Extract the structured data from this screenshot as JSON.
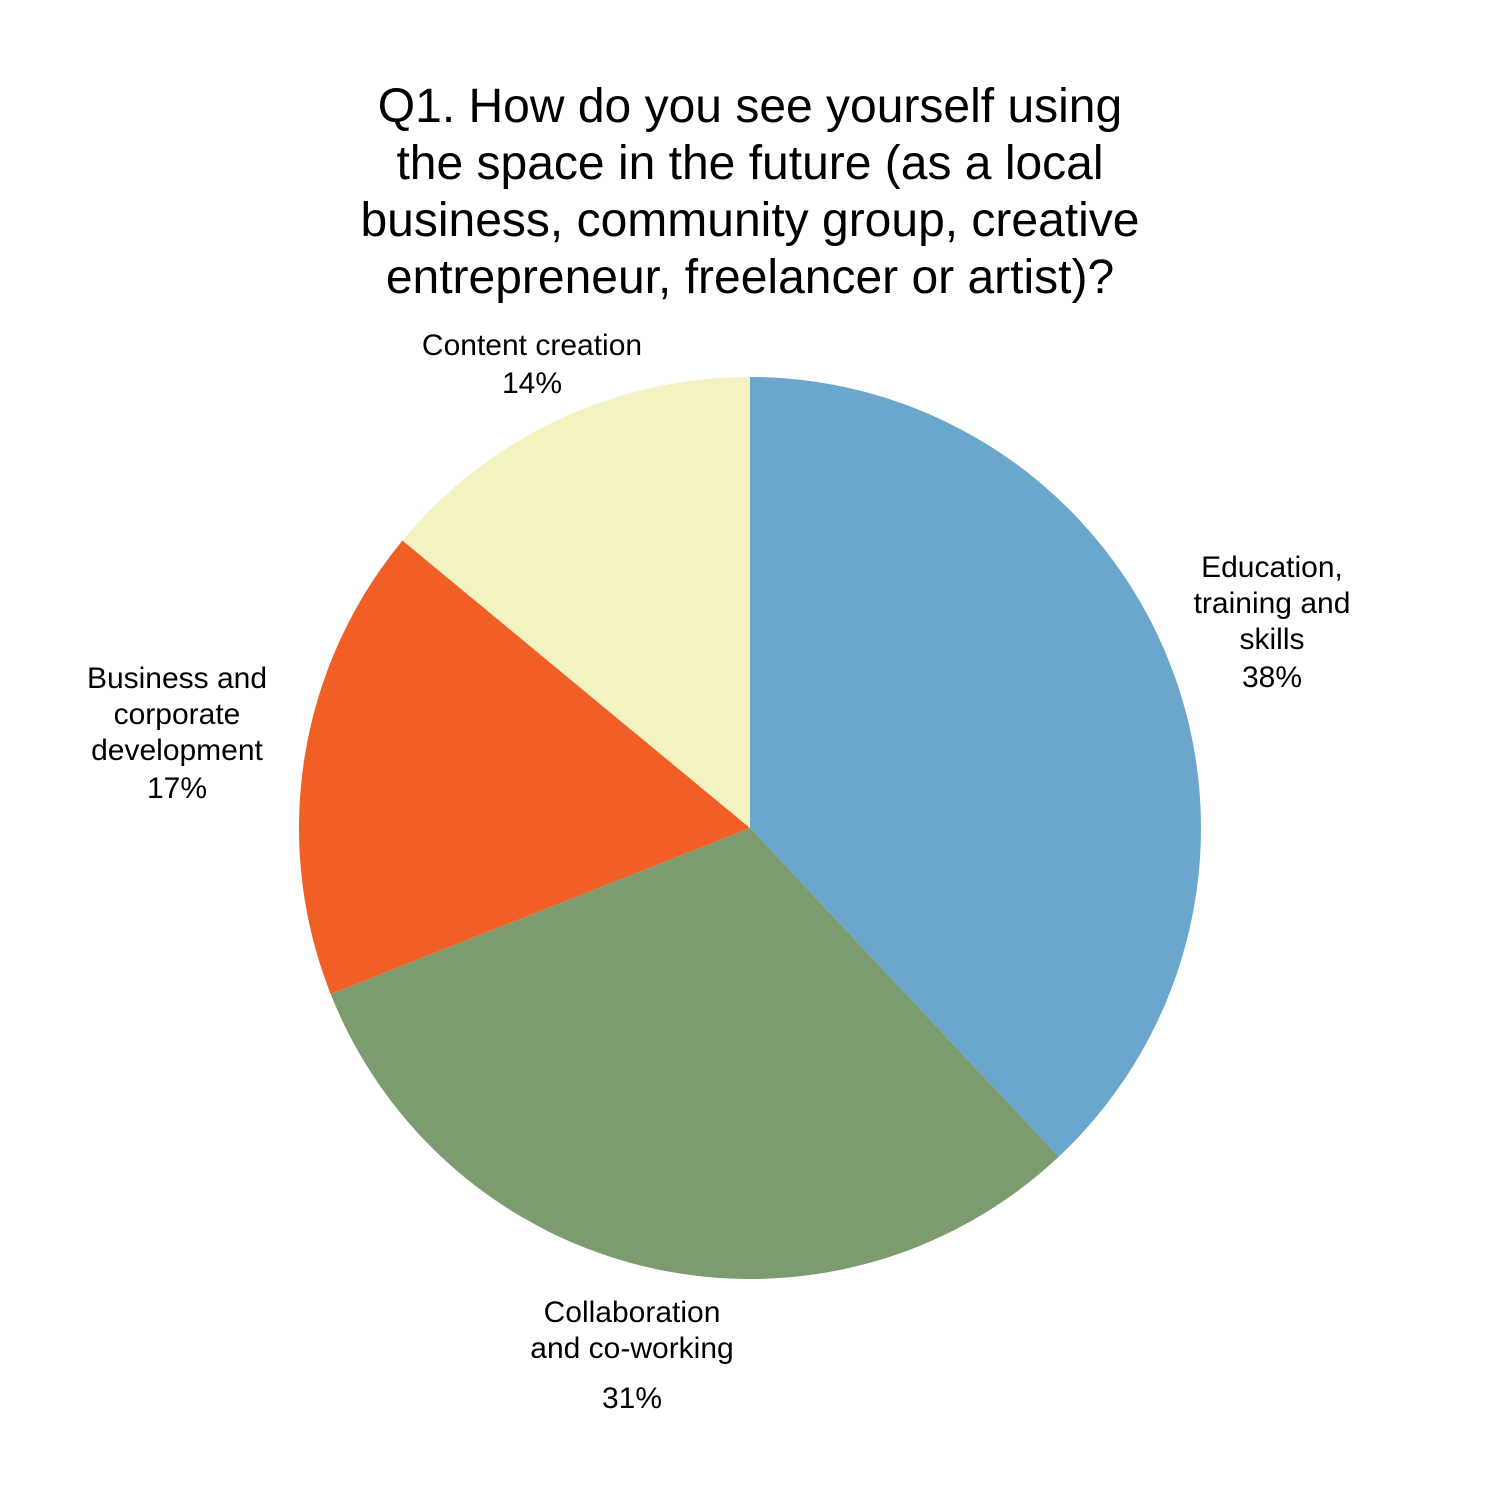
{
  "chart_data": {
    "type": "pie",
    "title_lines": [
      "Q1. How do you see yourself using",
      "the space in the future (as a local",
      "business, community group, creative",
      "entrepreneur, freelancer or artist)?"
    ],
    "slices": [
      {
        "label_lines": [
          "Education,",
          "training and",
          "skills"
        ],
        "value": 38,
        "value_label": "38%",
        "color": "#6ba7cc"
      },
      {
        "label_lines": [
          "Collaboration",
          "and co-working"
        ],
        "value": 31,
        "value_label": "31%",
        "color": "#7c9b6e"
      },
      {
        "label_lines": [
          "Business and",
          "corporate",
          "development"
        ],
        "value": 17,
        "value_label": "17%",
        "color": "#f15e26"
      },
      {
        "label_lines": [
          "Content creation"
        ],
        "value": 14,
        "value_label": "14%",
        "color": "#f3f3c2"
      }
    ],
    "start_angle": "12 o'clock",
    "direction": "clockwise",
    "legend": "none"
  }
}
